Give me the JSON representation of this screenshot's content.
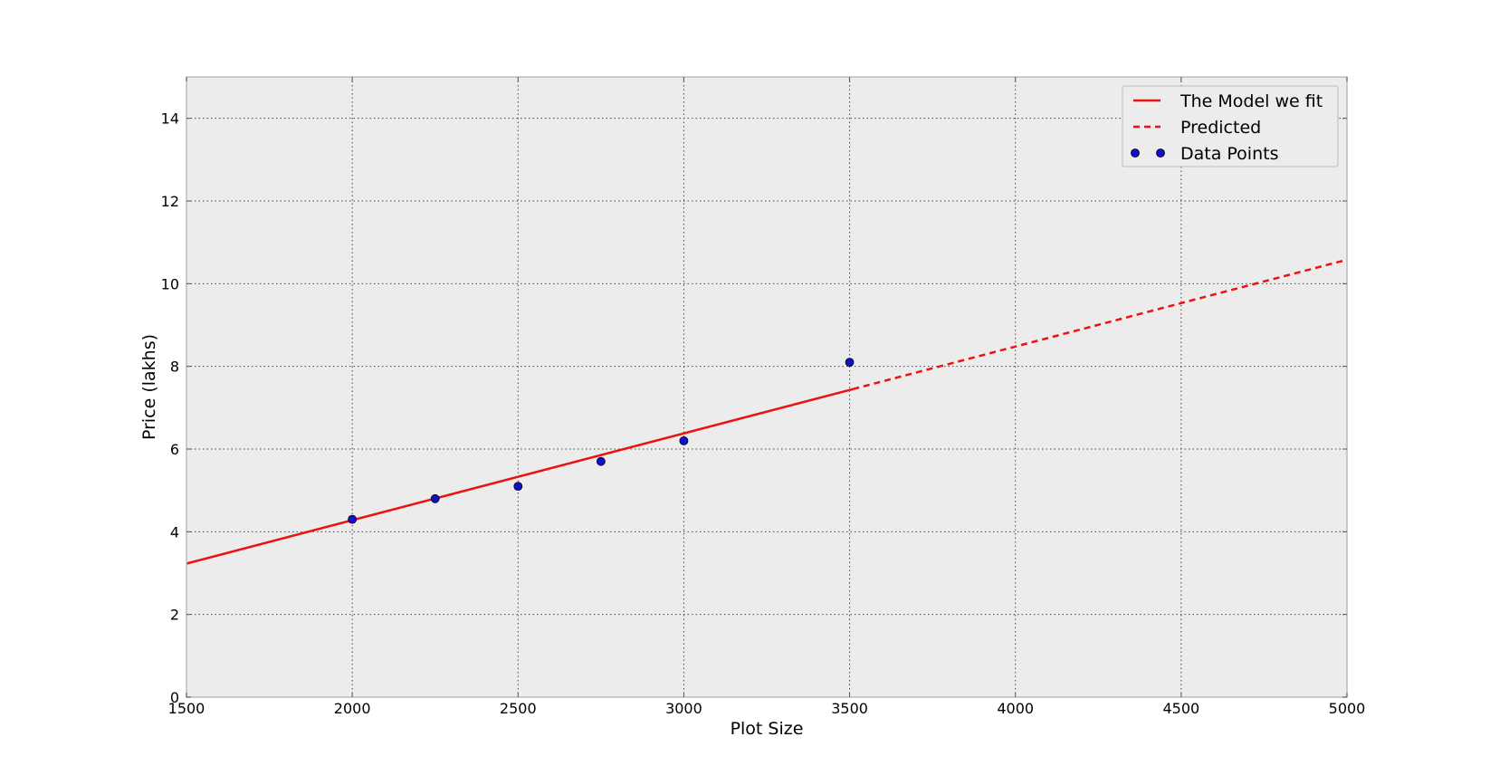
{
  "chart_data": {
    "type": "line",
    "title": "",
    "xlabel": "Plot Size",
    "ylabel": "Price (lakhs)",
    "xlim": [
      1500,
      5000
    ],
    "ylim": [
      0,
      15
    ],
    "x_ticks": [
      1500,
      2000,
      2500,
      3000,
      3500,
      4000,
      4500,
      5000
    ],
    "y_ticks": [
      0,
      2,
      4,
      6,
      8,
      10,
      12,
      14
    ],
    "grid": true,
    "legend_position": "top-right",
    "series": [
      {
        "name": "The Model we fit",
        "kind": "line",
        "style": "solid",
        "color": "#ee1111",
        "x": [
          1500,
          3510
        ],
        "y": [
          3.23,
          7.45
        ]
      },
      {
        "name": "Predicted",
        "kind": "line",
        "style": "dashed",
        "color": "#ee1111",
        "x": [
          3510,
          5000
        ],
        "y": [
          7.45,
          10.58
        ]
      },
      {
        "name": "Data Points",
        "kind": "scatter",
        "color": "#1010cc",
        "x": [
          2000,
          2250,
          2500,
          2750,
          3000,
          3500
        ],
        "y": [
          4.3,
          4.8,
          5.1,
          5.7,
          6.2,
          8.1
        ]
      }
    ]
  },
  "colors": {
    "plot_background": "#ececec",
    "axes_border": "#bcbcbc",
    "grid": "#444444",
    "line": "#ee1111",
    "points": "#1010cc"
  }
}
